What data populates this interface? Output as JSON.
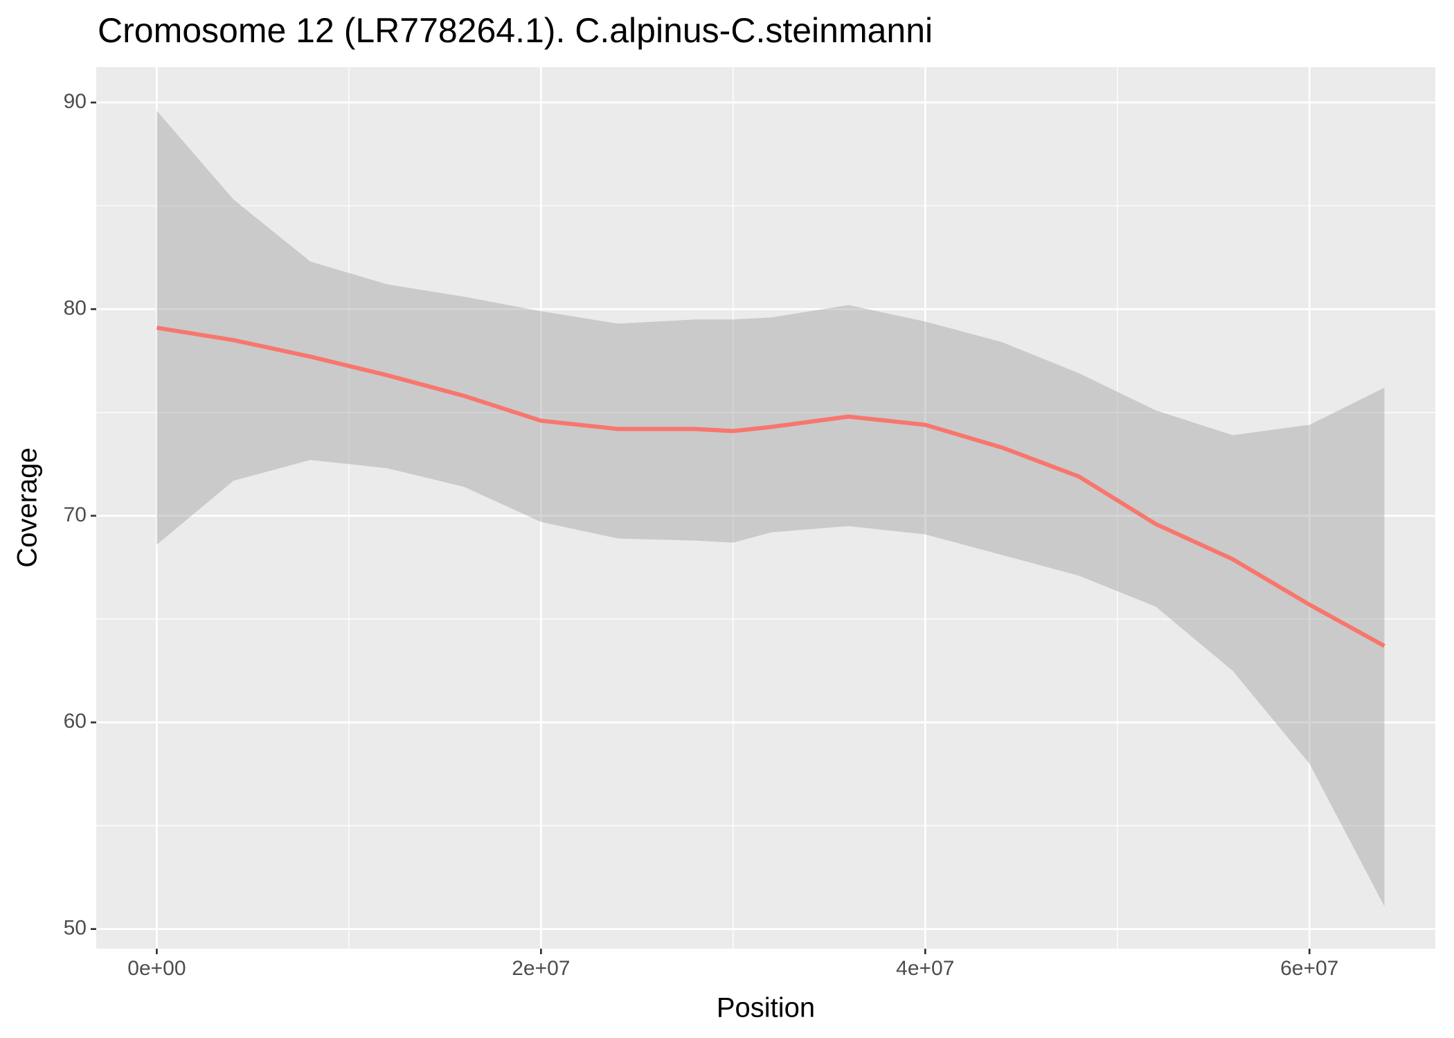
{
  "chart_data": {
    "type": "line",
    "title": "Cromosome 12 (LR778264.1). C.alpinus-C.steinmanni",
    "x_label": "Position",
    "y_label": "Coverage",
    "x": [
      0,
      4000000,
      8000000,
      12000000,
      16000000,
      20000000,
      24000000,
      28000000,
      30000000,
      32000000,
      36000000,
      40000000,
      44000000,
      48000000,
      52000000,
      56000000,
      60000000,
      63900000
    ],
    "values": [
      79.1,
      78.5,
      77.7,
      76.8,
      75.8,
      74.6,
      74.2,
      74.2,
      74.1,
      74.3,
      74.8,
      74.4,
      73.3,
      71.9,
      69.6,
      67.9,
      65.7,
      63.7
    ],
    "ci_upper": [
      89.6,
      85.3,
      82.3,
      81.2,
      80.6,
      79.9,
      79.3,
      79.5,
      79.5,
      79.6,
      80.2,
      79.4,
      78.4,
      76.9,
      75.1,
      73.9,
      74.4,
      76.2
    ],
    "ci_lower": [
      68.6,
      71.7,
      72.7,
      72.3,
      71.4,
      69.7,
      68.9,
      68.8,
      68.7,
      69.2,
      69.5,
      69.1,
      68.1,
      67.1,
      65.6,
      62.5,
      58.0,
      51.1
    ],
    "color": "#F8766D",
    "band_color": "#999999",
    "xlim": [
      -3150000,
      66550000
    ],
    "ylim": [
      49.05,
      91.71
    ],
    "xticks": [
      {
        "value": 0,
        "label": "0e+00"
      },
      {
        "value": 20000000,
        "label": "2e+07"
      },
      {
        "value": 40000000,
        "label": "4e+07"
      },
      {
        "value": 60000000,
        "label": "6e+07"
      }
    ],
    "yticks": [
      50,
      60,
      70,
      80,
      90
    ],
    "grid": true
  }
}
